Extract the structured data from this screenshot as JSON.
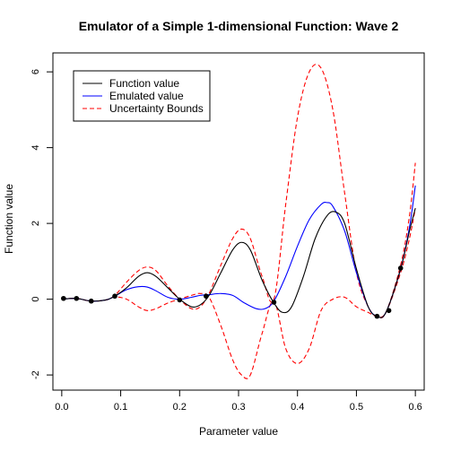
{
  "chart_data": {
    "type": "line",
    "title": "Emulator of a Simple 1-dimensional Function: Wave 2",
    "xlabel": "Parameter value",
    "ylabel": "Function value",
    "xlim": [
      -0.015,
      0.615
    ],
    "ylim": [
      -2.4,
      6.5
    ],
    "xticks": [
      0.0,
      0.1,
      0.2,
      0.3,
      0.4,
      0.5,
      0.6
    ],
    "xtick_labels": [
      "0.0",
      "0.1",
      "0.2",
      "0.3",
      "0.4",
      "0.5",
      "0.6"
    ],
    "yticks": [
      -2,
      0,
      2,
      4,
      6
    ],
    "ytick_labels": [
      "-2",
      "0",
      "2",
      "4",
      "6"
    ],
    "grid": false,
    "legend": {
      "position": "top-left",
      "entries": [
        {
          "label": "Function value",
          "color": "#000000",
          "dash": "solid"
        },
        {
          "label": "Emulated value",
          "color": "#0000ff",
          "dash": "solid"
        },
        {
          "label": "Uncertainty Bounds",
          "color": "#ff0000",
          "dash": "dashed"
        }
      ]
    },
    "series": [
      {
        "name": "Function value",
        "color": "#000000",
        "dash": "solid",
        "x": [
          0.0,
          0.025,
          0.05,
          0.075,
          0.09,
          0.11,
          0.13,
          0.145,
          0.16,
          0.18,
          0.2,
          0.22,
          0.235,
          0.25,
          0.27,
          0.29,
          0.305,
          0.32,
          0.34,
          0.36,
          0.375,
          0.39,
          0.41,
          0.43,
          0.45,
          0.465,
          0.48,
          0.5,
          0.52,
          0.535,
          0.55,
          0.575,
          0.59,
          0.6
        ],
        "y": [
          0.0,
          0.02,
          -0.05,
          -0.02,
          0.08,
          0.3,
          0.6,
          0.7,
          0.6,
          0.3,
          0.0,
          -0.2,
          -0.15,
          0.1,
          0.7,
          1.3,
          1.5,
          1.3,
          0.5,
          -0.1,
          -0.35,
          -0.2,
          0.6,
          1.6,
          2.2,
          2.3,
          2.0,
          0.8,
          -0.2,
          -0.45,
          -0.35,
          0.8,
          1.8,
          2.4
        ]
      },
      {
        "name": "Emulated value",
        "color": "#0000ff",
        "dash": "solid",
        "x": [
          0.0,
          0.025,
          0.05,
          0.075,
          0.09,
          0.11,
          0.13,
          0.145,
          0.16,
          0.18,
          0.2,
          0.22,
          0.235,
          0.25,
          0.27,
          0.29,
          0.31,
          0.33,
          0.345,
          0.36,
          0.38,
          0.4,
          0.42,
          0.44,
          0.45,
          0.46,
          0.48,
          0.5,
          0.52,
          0.535,
          0.55,
          0.575,
          0.59,
          0.6
        ],
        "y": [
          0.0,
          0.02,
          -0.05,
          -0.02,
          0.08,
          0.25,
          0.33,
          0.32,
          0.22,
          0.05,
          0.0,
          0.05,
          0.1,
          0.12,
          0.15,
          0.1,
          -0.1,
          -0.25,
          -0.25,
          -0.05,
          0.6,
          1.4,
          2.1,
          2.5,
          2.55,
          2.45,
          1.8,
          0.7,
          -0.2,
          -0.45,
          -0.35,
          0.8,
          1.9,
          3.0
        ]
      },
      {
        "name": "Uncertainty Bounds",
        "color": "#ff0000",
        "dash": "dashed",
        "x": [
          0.0,
          0.025,
          0.05,
          0.075,
          0.09,
          0.11,
          0.13,
          0.145,
          0.16,
          0.18,
          0.2,
          0.22,
          0.235,
          0.25,
          0.27,
          0.29,
          0.305,
          0.32,
          0.34,
          0.36,
          0.38,
          0.4,
          0.42,
          0.44,
          0.46,
          0.48,
          0.5,
          0.52,
          0.535,
          0.55,
          0.575,
          0.59,
          0.6
        ],
        "y": [
          0.0,
          0.02,
          -0.05,
          -0.02,
          0.1,
          0.45,
          0.75,
          0.85,
          0.75,
          0.35,
          0.0,
          -0.25,
          -0.2,
          0.15,
          0.9,
          1.6,
          1.85,
          1.6,
          0.6,
          0.0,
          2.5,
          4.8,
          6.0,
          6.1,
          5.0,
          2.8,
          0.7,
          -0.2,
          -0.45,
          -0.35,
          0.9,
          2.2,
          3.6
        ]
      },
      {
        "name": "Uncertainty Bounds",
        "color": "#ff0000",
        "dash": "dashed",
        "x": [
          0.0,
          0.025,
          0.05,
          0.075,
          0.09,
          0.11,
          0.13,
          0.145,
          0.16,
          0.18,
          0.2,
          0.22,
          0.235,
          0.25,
          0.27,
          0.29,
          0.305,
          0.32,
          0.34,
          0.36,
          0.38,
          0.4,
          0.42,
          0.44,
          0.46,
          0.48,
          0.5,
          0.52,
          0.535,
          0.55,
          0.575,
          0.59,
          0.6
        ],
        "y": [
          0.0,
          0.02,
          -0.05,
          -0.02,
          0.06,
          0.0,
          -0.2,
          -0.3,
          -0.25,
          -0.1,
          0.0,
          0.1,
          0.15,
          0.05,
          -0.7,
          -1.6,
          -2.0,
          -2.0,
          -0.9,
          -0.05,
          -1.3,
          -1.7,
          -1.3,
          -0.3,
          0.0,
          0.05,
          -0.2,
          -0.35,
          -0.45,
          -0.35,
          0.7,
          1.6,
          2.4
        ]
      }
    ],
    "points": {
      "name": "Design points",
      "color": "#000000",
      "x": [
        0.003,
        0.025,
        0.05,
        0.09,
        0.2,
        0.245,
        0.36,
        0.535,
        0.555,
        0.575
      ],
      "y": [
        0.02,
        0.02,
        -0.05,
        0.08,
        -0.02,
        0.08,
        -0.08,
        -0.45,
        -0.3,
        0.82
      ]
    }
  }
}
